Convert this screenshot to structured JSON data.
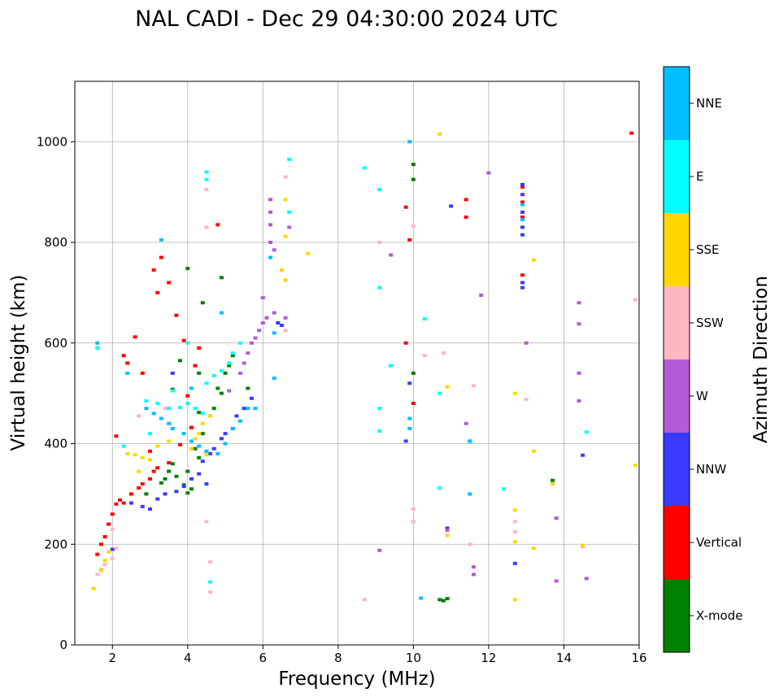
{
  "chart_data": {
    "type": "scatter",
    "title": "NAL CADI - Dec 29 04:30:00 2024 UTC",
    "xlabel": "Frequency (MHz)",
    "ylabel": "Virtual height (km)",
    "xlim": [
      1,
      16
    ],
    "ylim": [
      0,
      1120
    ],
    "xticks": [
      2,
      4,
      6,
      8,
      10,
      12,
      14,
      16
    ],
    "yticks": [
      0,
      200,
      400,
      600,
      800,
      1000
    ],
    "grid": true,
    "colorbar": {
      "label": "Azimuth Direction",
      "categories": [
        {
          "name": "X-mode",
          "color": "#008000"
        },
        {
          "name": "Vertical",
          "color": "#ff0000"
        },
        {
          "name": "NNW",
          "color": "#3a3aff"
        },
        {
          "name": "W",
          "color": "#b45ad6"
        },
        {
          "name": "SSW",
          "color": "#ffb6c1"
        },
        {
          "name": "SSE",
          "color": "#ffd700"
        },
        {
          "name": "E",
          "color": "#00ffff"
        },
        {
          "name": "NNE",
          "color": "#00bfff"
        }
      ]
    },
    "series": [
      {
        "name": "X-mode",
        "points": [
          [
            3.3,
            322
          ],
          [
            3.4,
            330
          ],
          [
            3.5,
            345
          ],
          [
            3.6,
            360
          ],
          [
            3.7,
            335
          ],
          [
            3.9,
            318
          ],
          [
            4.0,
            302
          ],
          [
            4.1,
            310
          ],
          [
            4.0,
            345
          ],
          [
            4.2,
            390
          ],
          [
            4.3,
            372
          ],
          [
            4.4,
            420
          ],
          [
            4.6,
            455
          ],
          [
            4.7,
            470
          ],
          [
            4.8,
            510
          ],
          [
            5.0,
            540
          ],
          [
            5.1,
            555
          ],
          [
            5.2,
            575
          ],
          [
            4.9,
            500
          ],
          [
            3.8,
            565
          ],
          [
            4.0,
            748
          ],
          [
            4.3,
            540
          ],
          [
            4.9,
            730
          ],
          [
            4.4,
            680
          ],
          [
            10.0,
            925
          ],
          [
            10.0,
            955
          ],
          [
            10.0,
            540
          ],
          [
            10.7,
            90
          ],
          [
            10.8,
            88
          ],
          [
            10.9,
            92
          ],
          [
            13.7,
            327
          ],
          [
            3.6,
            508
          ],
          [
            4.1,
            432
          ],
          [
            4.3,
            462
          ],
          [
            5.6,
            510
          ],
          [
            2.9,
            300
          ]
        ]
      },
      {
        "name": "Vertical",
        "points": [
          [
            1.6,
            180
          ],
          [
            1.7,
            200
          ],
          [
            1.8,
            215
          ],
          [
            1.9,
            240
          ],
          [
            2.0,
            260
          ],
          [
            2.1,
            280
          ],
          [
            2.2,
            288
          ],
          [
            2.3,
            282
          ],
          [
            2.5,
            300
          ],
          [
            2.7,
            312
          ],
          [
            2.8,
            320
          ],
          [
            3.0,
            330
          ],
          [
            3.1,
            345
          ],
          [
            3.2,
            352
          ],
          [
            3.5,
            362
          ],
          [
            3.8,
            398
          ],
          [
            4.1,
            432
          ],
          [
            2.8,
            540
          ],
          [
            3.1,
            745
          ],
          [
            3.3,
            770
          ],
          [
            3.5,
            720
          ],
          [
            3.7,
            655
          ],
          [
            3.9,
            605
          ],
          [
            4.3,
            590
          ],
          [
            2.3,
            575
          ],
          [
            2.4,
            560
          ],
          [
            4.0,
            495
          ],
          [
            4.2,
            555
          ],
          [
            4.8,
            835
          ],
          [
            9.8,
            870
          ],
          [
            9.9,
            805
          ],
          [
            9.8,
            600
          ],
          [
            10.0,
            480
          ],
          [
            11.4,
            850
          ],
          [
            11.4,
            885
          ],
          [
            12.9,
            735
          ],
          [
            12.9,
            850
          ],
          [
            12.9,
            880
          ],
          [
            12.9,
            910
          ],
          [
            15.8,
            1017
          ],
          [
            2.1,
            415
          ],
          [
            3.0,
            385
          ],
          [
            2.6,
            612
          ],
          [
            3.2,
            700
          ]
        ]
      },
      {
        "name": "NNW",
        "points": [
          [
            2.5,
            282
          ],
          [
            2.8,
            275
          ],
          [
            3.0,
            270
          ],
          [
            3.2,
            290
          ],
          [
            3.4,
            300
          ],
          [
            3.7,
            305
          ],
          [
            3.9,
            315
          ],
          [
            4.1,
            330
          ],
          [
            4.3,
            340
          ],
          [
            4.4,
            365
          ],
          [
            4.6,
            380
          ],
          [
            4.7,
            390
          ],
          [
            4.9,
            410
          ],
          [
            5.0,
            420
          ],
          [
            5.2,
            430
          ],
          [
            5.3,
            455
          ],
          [
            5.5,
            470
          ],
          [
            5.7,
            490
          ],
          [
            6.5,
            635
          ],
          [
            6.4,
            640
          ],
          [
            9.9,
            520
          ],
          [
            9.8,
            405
          ],
          [
            10.9,
            232
          ],
          [
            11.0,
            872
          ],
          [
            11.5,
            405
          ],
          [
            12.7,
            162
          ],
          [
            12.9,
            815
          ],
          [
            12.9,
            830
          ],
          [
            12.9,
            860
          ],
          [
            12.9,
            895
          ],
          [
            12.9,
            915
          ],
          [
            12.9,
            710
          ],
          [
            12.9,
            720
          ],
          [
            14.5,
            377
          ],
          [
            2.0,
            190
          ],
          [
            3.6,
            540
          ],
          [
            4.5,
            320
          ]
        ]
      },
      {
        "name": "W",
        "points": [
          [
            5.4,
            540
          ],
          [
            5.5,
            560
          ],
          [
            5.6,
            580
          ],
          [
            5.7,
            600
          ],
          [
            5.8,
            610
          ],
          [
            5.9,
            625
          ],
          [
            6.0,
            640
          ],
          [
            6.1,
            650
          ],
          [
            6.3,
            660
          ],
          [
            6.2,
            800
          ],
          [
            6.3,
            785
          ],
          [
            6.2,
            835
          ],
          [
            6.2,
            860
          ],
          [
            6.2,
            885
          ],
          [
            6.6,
            650
          ],
          [
            6.7,
            830
          ],
          [
            9.1,
            188
          ],
          [
            9.4,
            775
          ],
          [
            10.9,
            228
          ],
          [
            11.4,
            440
          ],
          [
            11.6,
            140
          ],
          [
            11.6,
            155
          ],
          [
            11.8,
            695
          ],
          [
            12.0,
            938
          ],
          [
            13.0,
            600
          ],
          [
            14.4,
            680
          ],
          [
            14.4,
            638
          ],
          [
            14.4,
            540
          ],
          [
            14.4,
            485
          ],
          [
            14.6,
            132
          ],
          [
            13.8,
            252
          ],
          [
            13.8,
            127
          ],
          [
            6.0,
            690
          ],
          [
            5.1,
            505
          ]
        ]
      },
      {
        "name": "SSW",
        "points": [
          [
            1.6,
            140
          ],
          [
            1.7,
            150
          ],
          [
            1.8,
            160
          ],
          [
            2.0,
            172
          ],
          [
            2.1,
            192
          ],
          [
            2.0,
            230
          ],
          [
            4.5,
            905
          ],
          [
            4.5,
            830
          ],
          [
            4.5,
            245
          ],
          [
            4.6,
            165
          ],
          [
            4.6,
            105
          ],
          [
            6.6,
            625
          ],
          [
            6.6,
            930
          ],
          [
            8.7,
            90
          ],
          [
            9.1,
            800
          ],
          [
            10.0,
            832
          ],
          [
            10.0,
            245
          ],
          [
            10.0,
            270
          ],
          [
            10.3,
            575
          ],
          [
            10.8,
            580
          ],
          [
            11.5,
            200
          ],
          [
            11.6,
            515
          ],
          [
            12.7,
            245
          ],
          [
            12.7,
            225
          ],
          [
            13.0,
            488
          ],
          [
            14.5,
            195
          ],
          [
            15.9,
            686
          ],
          [
            2.7,
            455
          ],
          [
            3.4,
            470
          ]
        ]
      },
      {
        "name": "SSE",
        "points": [
          [
            1.7,
            148
          ],
          [
            1.8,
            168
          ],
          [
            1.9,
            185
          ],
          [
            2.4,
            380
          ],
          [
            2.6,
            378
          ],
          [
            2.8,
            372
          ],
          [
            3.0,
            368
          ],
          [
            3.2,
            395
          ],
          [
            3.5,
            405
          ],
          [
            4.1,
            390
          ],
          [
            4.2,
            410
          ],
          [
            4.3,
            420
          ],
          [
            4.4,
            440
          ],
          [
            4.6,
            455
          ],
          [
            6.5,
            745
          ],
          [
            6.6,
            725
          ],
          [
            6.6,
            885
          ],
          [
            6.6,
            812
          ],
          [
            7.2,
            778
          ],
          [
            10.9,
            513
          ],
          [
            10.9,
            218
          ],
          [
            12.7,
            500
          ],
          [
            12.7,
            268
          ],
          [
            12.7,
            205
          ],
          [
            12.7,
            90
          ],
          [
            13.2,
            765
          ],
          [
            13.2,
            385
          ],
          [
            13.2,
            192
          ],
          [
            13.7,
            320
          ],
          [
            14.5,
            198
          ],
          [
            15.9,
            357
          ],
          [
            10.7,
            1015
          ],
          [
            4.5,
            378
          ],
          [
            2.7,
            345
          ],
          [
            1.5,
            112
          ]
        ]
      },
      {
        "name": "E",
        "points": [
          [
            1.6,
            590
          ],
          [
            2.9,
            485
          ],
          [
            3.2,
            480
          ],
          [
            3.5,
            470
          ],
          [
            3.8,
            472
          ],
          [
            4.0,
            480
          ],
          [
            4.2,
            470
          ],
          [
            4.4,
            460
          ],
          [
            4.5,
            520
          ],
          [
            4.7,
            535
          ],
          [
            4.9,
            545
          ],
          [
            5.1,
            560
          ],
          [
            5.2,
            580
          ],
          [
            5.4,
            600
          ],
          [
            4.5,
            940
          ],
          [
            4.5,
            925
          ],
          [
            4.6,
            125
          ],
          [
            6.7,
            965
          ],
          [
            6.7,
            860
          ],
          [
            8.7,
            948
          ],
          [
            9.1,
            905
          ],
          [
            9.1,
            710
          ],
          [
            9.1,
            470
          ],
          [
            9.1,
            425
          ],
          [
            9.4,
            555
          ],
          [
            10.3,
            648
          ],
          [
            10.7,
            500
          ],
          [
            10.7,
            312
          ],
          [
            12.4,
            310
          ],
          [
            14.6,
            423
          ],
          [
            2.3,
            395
          ],
          [
            3.0,
            420
          ],
          [
            3.6,
            505
          ],
          [
            4.0,
            600
          ]
        ]
      },
      {
        "name": "NNE",
        "points": [
          [
            1.6,
            600
          ],
          [
            2.9,
            470
          ],
          [
            3.1,
            460
          ],
          [
            3.3,
            450
          ],
          [
            3.5,
            440
          ],
          [
            3.6,
            430
          ],
          [
            3.9,
            420
          ],
          [
            4.1,
            405
          ],
          [
            4.3,
            395
          ],
          [
            4.5,
            385
          ],
          [
            4.8,
            380
          ],
          [
            5.0,
            400
          ],
          [
            5.2,
            430
          ],
          [
            5.4,
            445
          ],
          [
            5.6,
            470
          ],
          [
            5.8,
            470
          ],
          [
            6.2,
            770
          ],
          [
            6.3,
            620
          ],
          [
            6.3,
            530
          ],
          [
            9.9,
            1000
          ],
          [
            9.9,
            450
          ],
          [
            9.9,
            430
          ],
          [
            10.2,
            93
          ],
          [
            11.5,
            405
          ],
          [
            11.5,
            300
          ],
          [
            12.9,
            845
          ],
          [
            12.9,
            875
          ],
          [
            2.4,
            540
          ],
          [
            3.3,
            805
          ],
          [
            4.9,
            660
          ],
          [
            4.1,
            510
          ]
        ]
      }
    ]
  }
}
